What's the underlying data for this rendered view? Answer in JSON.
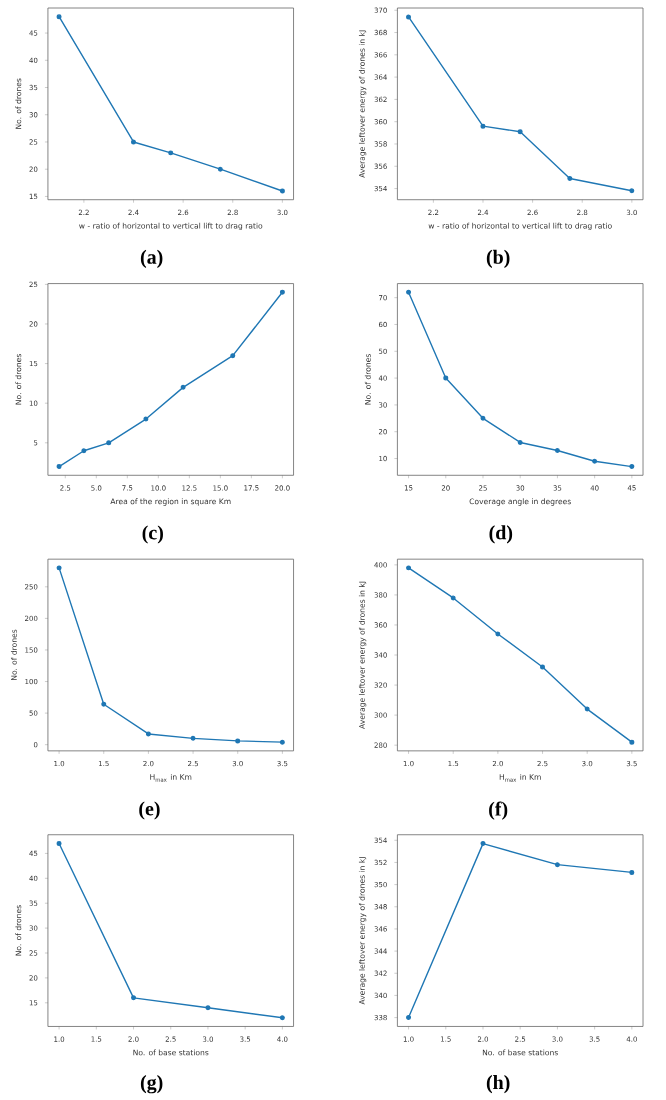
{
  "chart_data": [
    {
      "type": "line",
      "x": [
        2.1,
        2.4,
        2.55,
        2.75,
        3.0
      ],
      "values": [
        48,
        25,
        23,
        20,
        16
      ],
      "color": "#1f77b4",
      "marker": "circle",
      "xlabel": "w - ratio of horizontal to vertical lift to drag ratio",
      "ylabel": "No. of drones",
      "xlim": [
        2.055,
        3.045
      ],
      "ylim": [
        14.4,
        49.6
      ],
      "xticks": [
        2.2,
        2.4,
        2.6,
        2.8,
        {
          "value": 3,
          "label": "3.0"
        }
      ],
      "yticks": [
        15,
        20,
        25,
        30,
        35,
        40,
        45
      ],
      "annotations": [
        "(a)"
      ]
    },
    {
      "type": "line",
      "x": [
        2.1,
        2.4,
        2.55,
        2.75,
        3.0
      ],
      "values": [
        369.4,
        359.6,
        359.1,
        354.9,
        353.8
      ],
      "color": "#1f77b4",
      "marker": "circle",
      "xlabel": "w - ratio of horizontal to vertical lift to drag ratio",
      "ylabel": "Average leftover energy of drones in kJ",
      "xlim": [
        2.055,
        3.045
      ],
      "ylim": [
        353.0,
        370.2
      ],
      "xticks": [
        2.2,
        2.4,
        2.6,
        2.8,
        {
          "value": 3,
          "label": "3.0"
        }
      ],
      "yticks": [
        354,
        356,
        358,
        360,
        362,
        364,
        366,
        368,
        370
      ],
      "annotations": [
        "(b)"
      ]
    },
    {
      "type": "line",
      "x": [
        2,
        4,
        6,
        9,
        12,
        16,
        20
      ],
      "values": [
        2,
        4,
        5,
        8,
        12,
        16,
        24
      ],
      "color": "#1f77b4",
      "marker": "circle",
      "xlabel": "Area of the region in square Km",
      "ylabel": "No. of drones",
      "xlim": [
        1.1,
        20.9
      ],
      "ylim": [
        0.9,
        25.1
      ],
      "xticks": [
        2.5,
        {
          "value": 5,
          "label": "5.0"
        },
        7.5,
        {
          "value": 10,
          "label": "10.0"
        },
        12.5,
        {
          "value": 15,
          "label": "15.0"
        },
        17.5,
        {
          "value": 20,
          "label": "20.0"
        }
      ],
      "yticks": [
        5,
        10,
        15,
        20,
        25
      ],
      "annotations": [
        "(c)"
      ]
    },
    {
      "type": "line",
      "x": [
        15,
        20,
        25,
        30,
        35,
        40,
        45
      ],
      "values": [
        72,
        40,
        25,
        16,
        13,
        9,
        7
      ],
      "color": "#1f77b4",
      "marker": "circle",
      "xlabel": "Coverage angle in degrees",
      "ylabel": "No. of drones",
      "xlim": [
        13.5,
        46.5
      ],
      "ylim": [
        3.75,
        75.25
      ],
      "xticks": [
        15,
        20,
        25,
        30,
        35,
        40,
        45
      ],
      "yticks": [
        10,
        20,
        30,
        40,
        50,
        60,
        70
      ],
      "annotations": [
        "(d)"
      ]
    },
    {
      "type": "line",
      "x": [
        1.0,
        1.5,
        2.0,
        2.5,
        3.0,
        3.5
      ],
      "values": [
        280,
        64,
        17,
        10,
        6,
        4
      ],
      "color": "#1f77b4",
      "marker": "circle",
      "xlabel": "H$_{max}$ in Km",
      "ylabel": "No. of drones",
      "xlim": [
        0.875,
        3.625
      ],
      "ylim": [
        -9.8,
        293.8
      ],
      "xticks": [
        {
          "value": 1,
          "label": "1.0"
        },
        1.5,
        {
          "value": 2,
          "label": "2.0"
        },
        2.5,
        {
          "value": 3,
          "label": "3.0"
        },
        3.5
      ],
      "yticks": [
        0,
        50,
        100,
        150,
        200,
        250
      ],
      "annotations": [
        "(e)"
      ]
    },
    {
      "type": "line",
      "x": [
        1.0,
        1.5,
        2.0,
        2.5,
        3.0,
        3.5
      ],
      "values": [
        398,
        378,
        354,
        332,
        304,
        282
      ],
      "color": "#1f77b4",
      "marker": "circle",
      "xlabel": "H$_{max}$ in Km",
      "ylabel": "Average leftover energy of drones in kJ",
      "xlim": [
        0.875,
        3.625
      ],
      "ylim": [
        276.2,
        403.8
      ],
      "xticks": [
        {
          "value": 1,
          "label": "1.0"
        },
        1.5,
        {
          "value": 2,
          "label": "2.0"
        },
        2.5,
        {
          "value": 3,
          "label": "3.0"
        },
        3.5
      ],
      "yticks": [
        280,
        300,
        320,
        340,
        360,
        380,
        400
      ],
      "annotations": [
        "(f)"
      ]
    },
    {
      "type": "line",
      "x": [
        1,
        2,
        3,
        4
      ],
      "values": [
        47,
        16,
        14,
        12
      ],
      "color": "#1f77b4",
      "marker": "circle",
      "xlabel": "No. of base stations",
      "ylabel": "No. of drones",
      "xlim": [
        0.85,
        4.15
      ],
      "ylim": [
        10.25,
        48.75
      ],
      "xticks": [
        {
          "value": 1,
          "label": "1.0"
        },
        1.5,
        {
          "value": 2,
          "label": "2.0"
        },
        2.5,
        {
          "value": 3,
          "label": "3.0"
        },
        3.5,
        {
          "value": 4,
          "label": "4.0"
        }
      ],
      "yticks": [
        15,
        20,
        25,
        30,
        35,
        40,
        45
      ],
      "annotations": [
        "(g)"
      ]
    },
    {
      "type": "line",
      "x": [
        1,
        2,
        3,
        4
      ],
      "values": [
        338,
        353.7,
        351.8,
        351.1
      ],
      "color": "#1f77b4",
      "marker": "circle",
      "xlabel": "No. of base stations",
      "ylabel": "Average leftover energy of drones in kJ",
      "xlim": [
        0.85,
        4.15
      ],
      "ylim": [
        337.2,
        354.5
      ],
      "xticks": [
        {
          "value": 1,
          "label": "1.0"
        },
        1.5,
        {
          "value": 2,
          "label": "2.0"
        },
        2.5,
        {
          "value": 3,
          "label": "3.0"
        },
        3.5,
        {
          "value": 4,
          "label": "4.0"
        }
      ],
      "yticks": [
        338,
        340,
        342,
        344,
        346,
        348,
        350,
        352,
        354
      ],
      "annotations": [
        "(h)"
      ]
    }
  ]
}
